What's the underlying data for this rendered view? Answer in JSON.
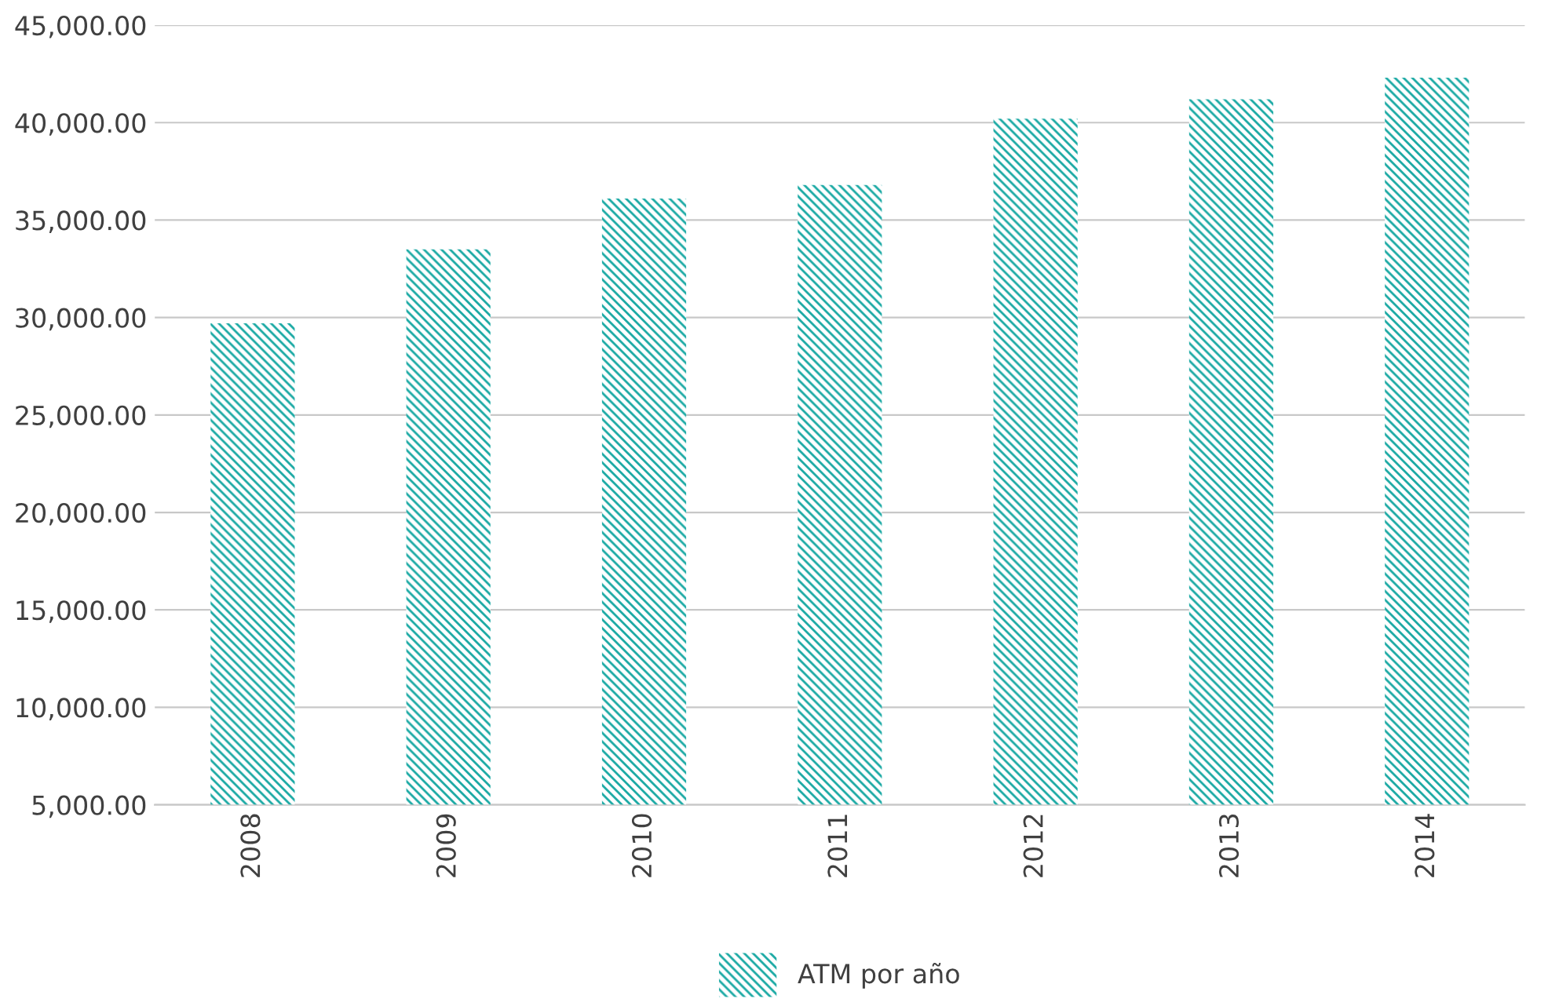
{
  "chart_data": {
    "type": "bar",
    "categories": [
      "2008",
      "2009",
      "2010",
      "2011",
      "2012",
      "2013",
      "2014"
    ],
    "series": [
      {
        "name": "ATM por año",
        "color": "#1aa9a4",
        "values": [
          29700,
          33500,
          36100,
          36800,
          40200,
          41200,
          42300
        ]
      }
    ],
    "ylim": [
      5000,
      45000
    ],
    "yticks": [
      {
        "value": 5000,
        "label": "5,000.00"
      },
      {
        "value": 10000,
        "label": "10,000.00"
      },
      {
        "value": 15000,
        "label": "15,000.00"
      },
      {
        "value": 20000,
        "label": "20,000.00"
      },
      {
        "value": 25000,
        "label": "25,000.00"
      },
      {
        "value": 30000,
        "label": "30,000.00"
      },
      {
        "value": 35000,
        "label": "35,000.00"
      },
      {
        "value": 40000,
        "label": "40,000.00"
      },
      {
        "value": 45000,
        "label": "45,000.00"
      }
    ],
    "grid": "y",
    "legend": "bottom"
  }
}
